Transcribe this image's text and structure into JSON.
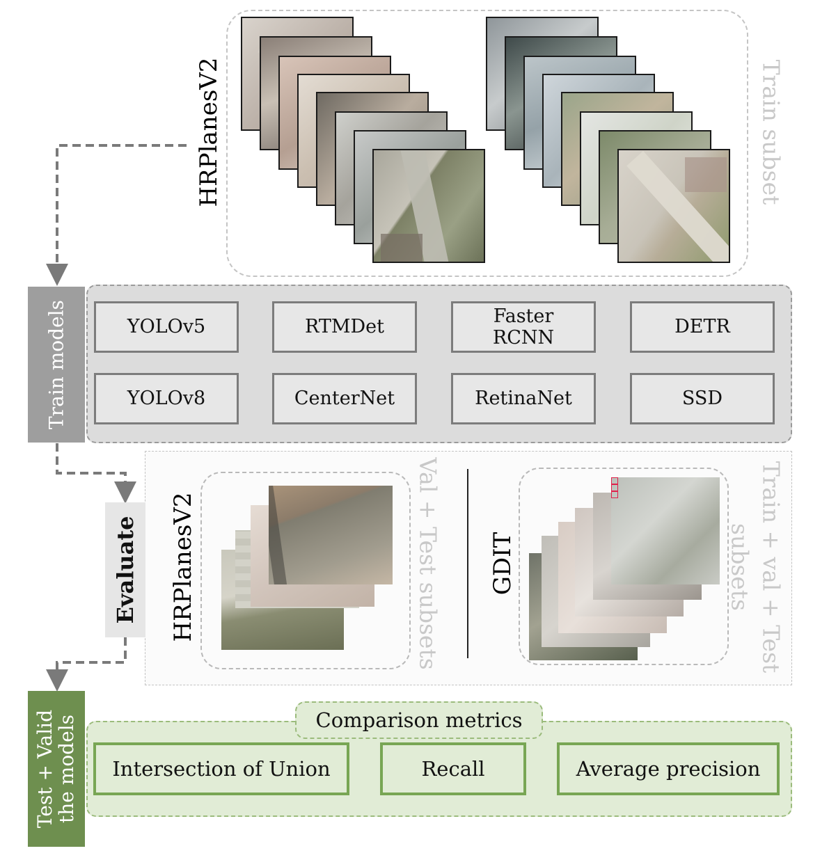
{
  "train_section": {
    "dataset_label": "HRPlanesV2",
    "subset_label": "Train subset"
  },
  "train_models": {
    "side_label": "Train models",
    "models": [
      "YOLOv5",
      "RTMDet",
      "Faster RCNN",
      "DETR",
      "YOLOv8",
      "CenterNet",
      "RetinaNet",
      "SSD"
    ]
  },
  "evaluate": {
    "side_label": "Evaluate",
    "left_dataset_label": "HRPlanesV2",
    "left_subset_label": "Val + Test subsets",
    "right_dataset_label": "GDIT",
    "right_subset_line1": "Train + val + Test",
    "right_subset_line2": "subsets"
  },
  "test_valid": {
    "side_label_line1": "Test + Valid",
    "side_label_line2": "the models",
    "metrics_title": "Comparison metrics",
    "metrics": [
      "Intersection of Union",
      "Recall",
      "Average precision"
    ]
  },
  "colors": {
    "train_side": "#9e9e9e",
    "models_panel": "#dcdcdc",
    "test_side": "#6e8f4f",
    "metrics_fill": "#e1ecd6",
    "metrics_border": "#78a654",
    "subset_text": "#c8c8c8"
  }
}
